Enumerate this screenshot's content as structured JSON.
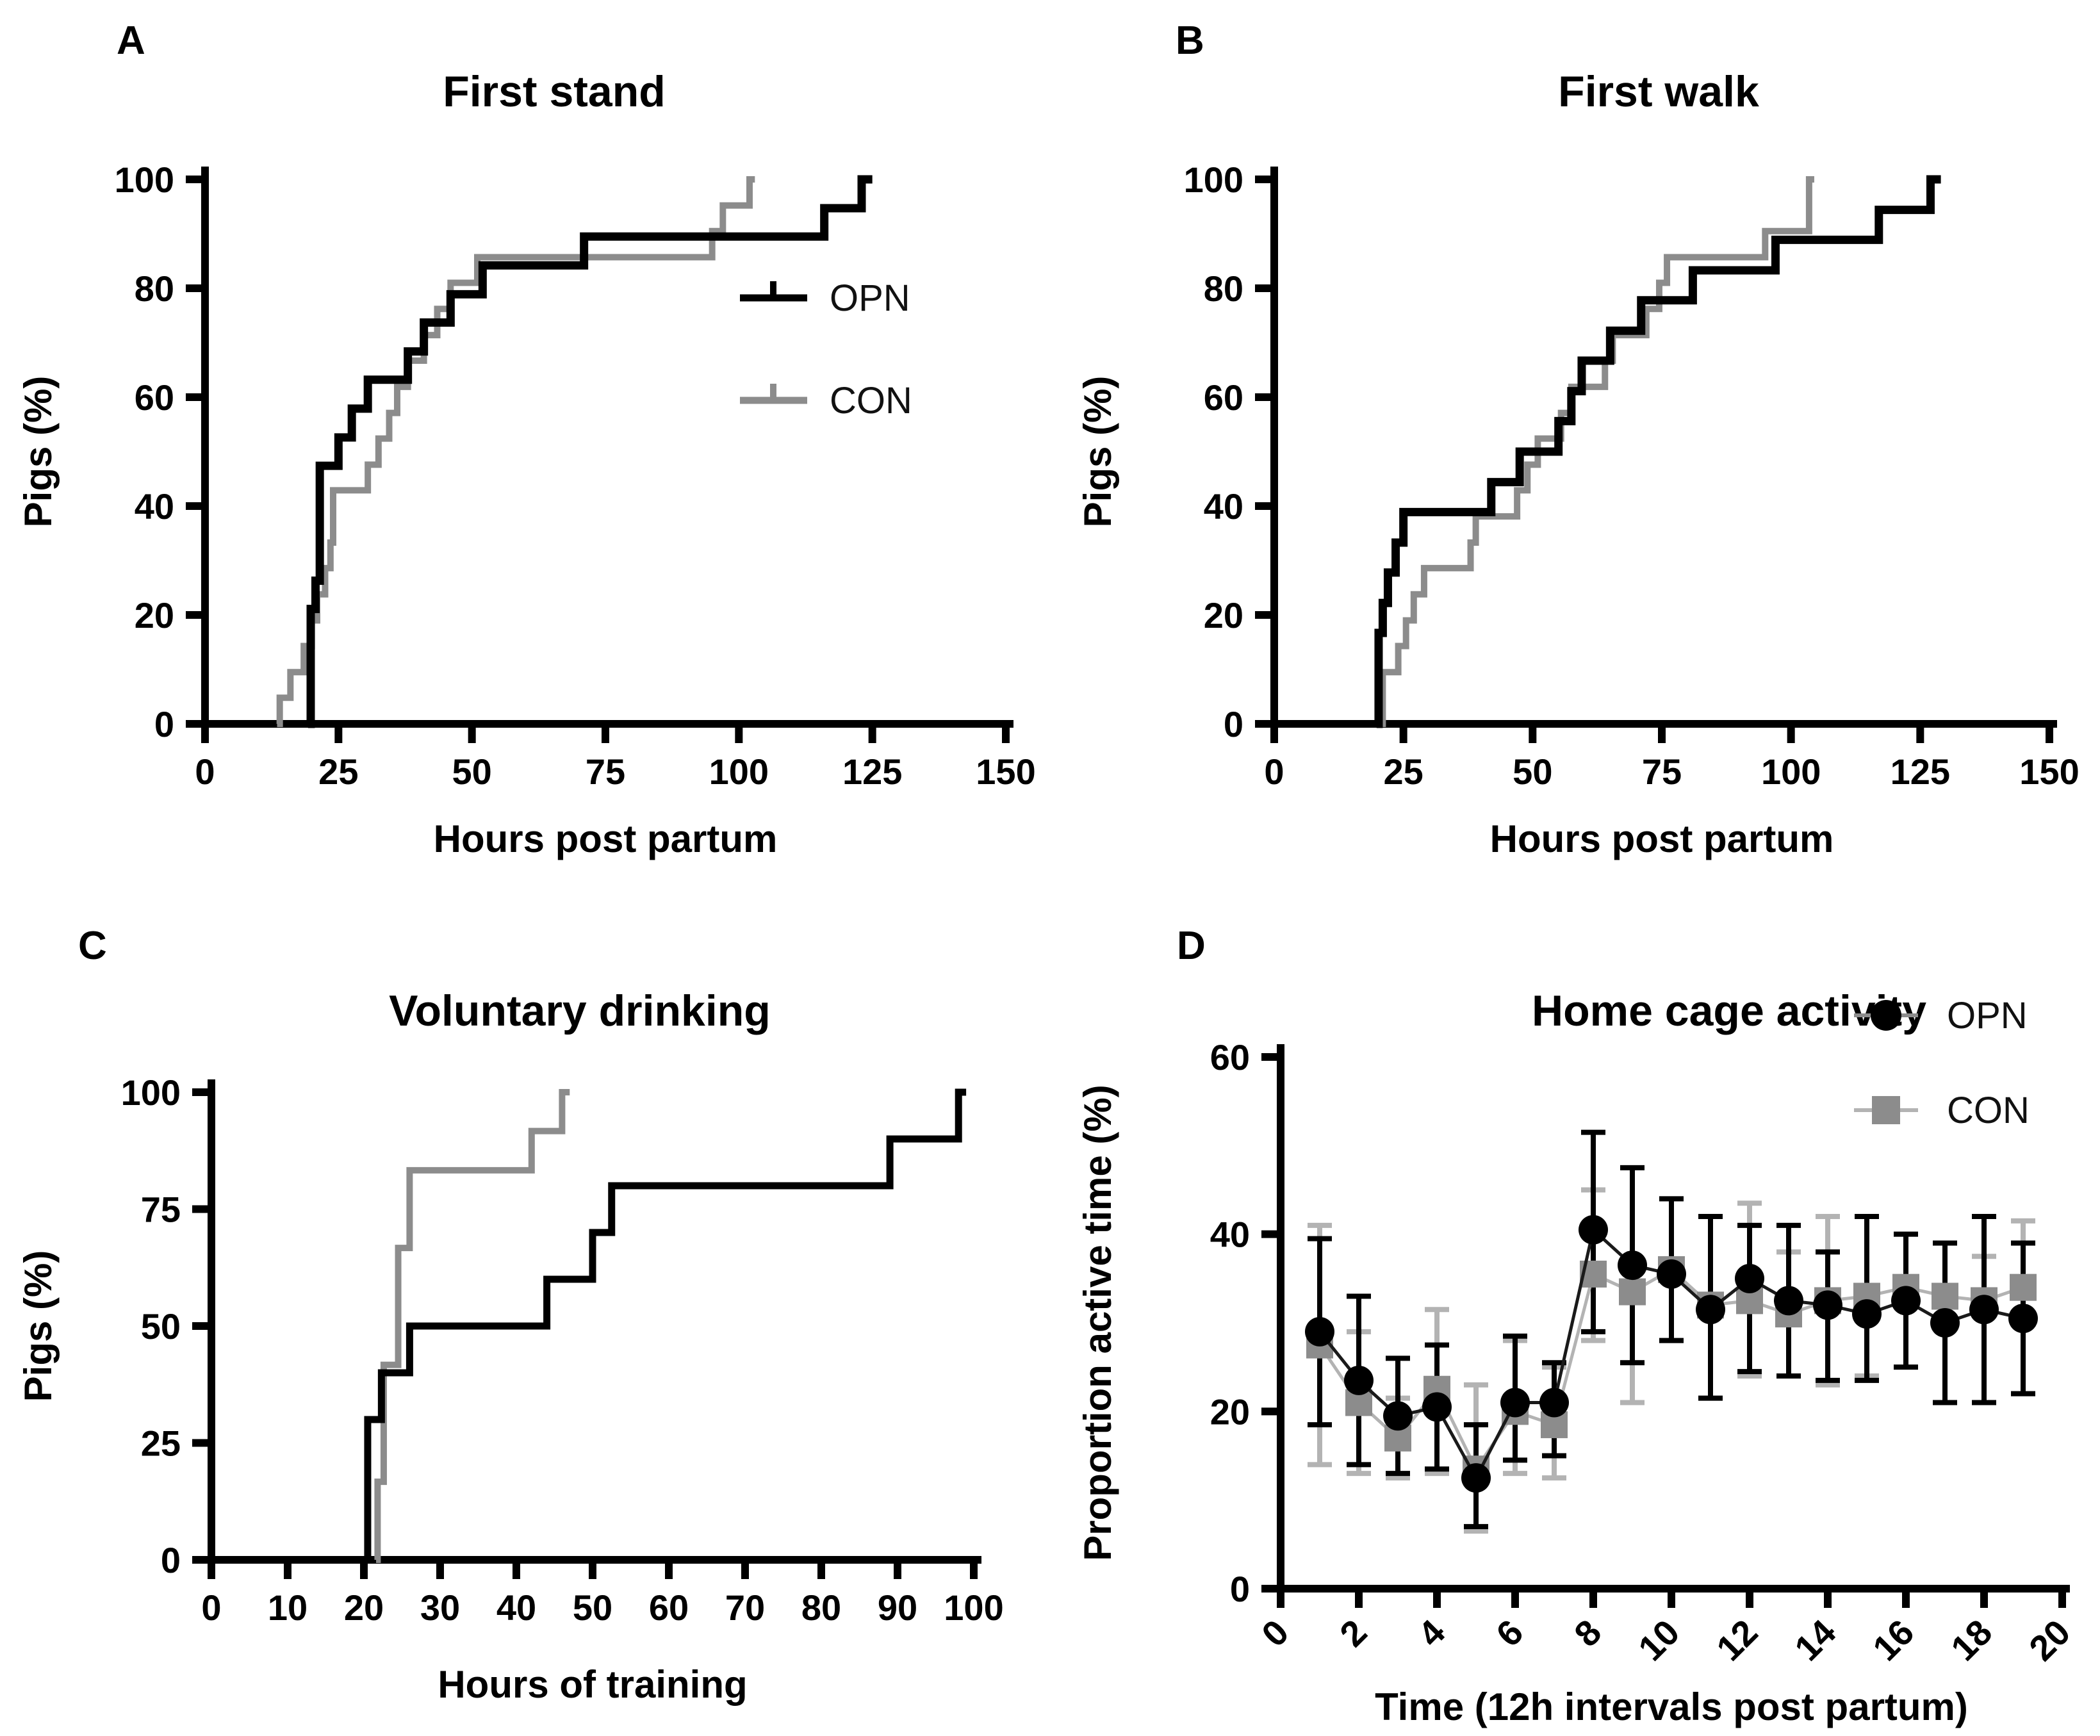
{
  "chart_data": [
    {
      "id": "A",
      "panel_label": "A",
      "type": "step",
      "title": "First stand",
      "xlabel": "Hours post partum",
      "ylabel": "Pigs (%)",
      "xlim": [
        0,
        150
      ],
      "xticks": [
        0,
        25,
        50,
        75,
        100,
        125,
        150
      ],
      "ylim": [
        0,
        100
      ],
      "yticks": [
        0,
        20,
        40,
        60,
        80,
        100
      ],
      "grid": false,
      "legend": {
        "show": true,
        "position": "inside-right",
        "items": [
          {
            "label": "OPN",
            "color": "#000000"
          },
          {
            "label": "CON",
            "color": "#8c8c8c"
          }
        ]
      },
      "series": [
        {
          "name": "CON",
          "color": "#8c8c8c",
          "line_width": 10,
          "end_x": 103,
          "points": [
            [
              13.5,
              0
            ],
            [
              14,
              4.8
            ],
            [
              16,
              9.5
            ],
            [
              18.5,
              14.3
            ],
            [
              20,
              19
            ],
            [
              21,
              23.8
            ],
            [
              22.5,
              28.6
            ],
            [
              23.5,
              33.3
            ],
            [
              24,
              42.9
            ],
            [
              30.5,
              47.6
            ],
            [
              32.5,
              52.4
            ],
            [
              34.5,
              57.1
            ],
            [
              36,
              61.9
            ],
            [
              38,
              66.7
            ],
            [
              41,
              71.4
            ],
            [
              43.5,
              76.2
            ],
            [
              46,
              81
            ],
            [
              51,
              85.7
            ],
            [
              95,
              90.5
            ],
            [
              97,
              95.2
            ],
            [
              102,
              100
            ]
          ]
        },
        {
          "name": "OPN",
          "color": "#000000",
          "line_width": 13,
          "end_x": 125,
          "points": [
            [
              19.3,
              0
            ],
            [
              19.8,
              21.1
            ],
            [
              20.7,
              26.3
            ],
            [
              21.5,
              47.4
            ],
            [
              25,
              52.6
            ],
            [
              27.5,
              57.9
            ],
            [
              30.5,
              63.2
            ],
            [
              38,
              68.4
            ],
            [
              41,
              73.7
            ],
            [
              46,
              78.9
            ],
            [
              52,
              84.2
            ],
            [
              71,
              89.5
            ],
            [
              116,
              94.7
            ],
            [
              123,
              100
            ]
          ]
        }
      ]
    },
    {
      "id": "B",
      "panel_label": "B",
      "type": "step",
      "title": "First walk",
      "xlabel": "Hours post partum",
      "ylabel": "Pigs (%)",
      "xlim": [
        0,
        150
      ],
      "xticks": [
        0,
        25,
        50,
        75,
        100,
        125,
        150
      ],
      "ylim": [
        0,
        100
      ],
      "yticks": [
        0,
        20,
        40,
        60,
        80,
        100
      ],
      "grid": false,
      "legend": {
        "show": false,
        "items": []
      },
      "series": [
        {
          "name": "CON",
          "color": "#8c8c8c",
          "line_width": 10,
          "end_x": 104.5,
          "points": [
            [
              20.8,
              0
            ],
            [
              21,
              9.5
            ],
            [
              24,
              14.3
            ],
            [
              25.5,
              19
            ],
            [
              27,
              23.8
            ],
            [
              29,
              28.6
            ],
            [
              38,
              33.3
            ],
            [
              39,
              38.1
            ],
            [
              47,
              42.9
            ],
            [
              49,
              47.6
            ],
            [
              51,
              52.4
            ],
            [
              55.5,
              57.1
            ],
            [
              57.5,
              61.9
            ],
            [
              64,
              66.7
            ],
            [
              65.5,
              71.4
            ],
            [
              72,
              76.2
            ],
            [
              74.5,
              81
            ],
            [
              76,
              85.7
            ],
            [
              95,
              90.5
            ],
            [
              103.5,
              100
            ]
          ]
        },
        {
          "name": "OPN",
          "color": "#000000",
          "line_width": 13,
          "end_x": 129,
          "points": [
            [
              19.8,
              0
            ],
            [
              20.2,
              16.7
            ],
            [
              21,
              22.2
            ],
            [
              22,
              27.8
            ],
            [
              23.5,
              33.3
            ],
            [
              25,
              38.9
            ],
            [
              42,
              44.4
            ],
            [
              47.5,
              50
            ],
            [
              55,
              55.6
            ],
            [
              57.5,
              61.1
            ],
            [
              59.5,
              66.7
            ],
            [
              65,
              72.2
            ],
            [
              71,
              77.8
            ],
            [
              81,
              83.3
            ],
            [
              97,
              88.9
            ],
            [
              117,
              94.4
            ],
            [
              127,
              100
            ]
          ]
        }
      ]
    },
    {
      "id": "C",
      "panel_label": "C",
      "type": "step",
      "title": "Voluntary drinking",
      "xlabel": "Hours of training",
      "ylabel": "Pigs (%)",
      "xlim": [
        0,
        100
      ],
      "xticks": [
        0,
        10,
        20,
        30,
        40,
        50,
        60,
        70,
        80,
        90,
        100
      ],
      "ylim": [
        0,
        100
      ],
      "yticks": [
        0,
        25,
        50,
        75,
        100
      ],
      "grid": false,
      "legend": {
        "show": false,
        "items": []
      },
      "series": [
        {
          "name": "CON",
          "color": "#8c8c8c",
          "line_width": 10,
          "end_x": 47,
          "points": [
            [
              21.6,
              0
            ],
            [
              21.8,
              16.7
            ],
            [
              22.6,
              41.7
            ],
            [
              24.5,
              66.7
            ],
            [
              26,
              83.3
            ],
            [
              42,
              91.7
            ],
            [
              46,
              100
            ]
          ]
        },
        {
          "name": "OPN",
          "color": "#000000",
          "line_width": 11,
          "end_x": 99,
          "points": [
            [
              20.2,
              0
            ],
            [
              20.5,
              30
            ],
            [
              22.3,
              40
            ],
            [
              26,
              50
            ],
            [
              44,
              60
            ],
            [
              50,
              70
            ],
            [
              52.5,
              80
            ],
            [
              89,
              90
            ],
            [
              98,
              100
            ]
          ]
        }
      ]
    },
    {
      "id": "D",
      "panel_label": "D",
      "type": "errorline",
      "title": "Home cage activity",
      "xlabel": "Time (12h intervals post partum)",
      "ylabel": "Proportion active time (%)",
      "xlim": [
        0,
        20
      ],
      "xticks": [
        0,
        2,
        4,
        6,
        8,
        10,
        12,
        14,
        16,
        18,
        20
      ],
      "ylim": [
        0,
        60
      ],
      "yticks": [
        0,
        20,
        40,
        60
      ],
      "grid": false,
      "x": [
        1,
        2,
        3,
        4,
        5,
        6,
        7,
        8,
        9,
        10,
        11,
        12,
        13,
        14,
        15,
        16,
        17,
        18,
        19
      ],
      "legend": {
        "show": true,
        "position": "top-right",
        "items": [
          {
            "label": "OPN",
            "color": "#000000",
            "marker": "circle"
          },
          {
            "label": "CON",
            "color": "#8c8c8c",
            "marker": "square"
          }
        ]
      },
      "series": [
        {
          "name": "CON",
          "marker": "square",
          "marker_color": "#8c8c8c",
          "line_color": "#b3b3b3",
          "bar_color": "#b3b3b3",
          "values": [
            27.5,
            21,
            17,
            22.5,
            13.5,
            20,
            18.5,
            35.5,
            33.5,
            36,
            32,
            32.5,
            31,
            32.5,
            33,
            34,
            33,
            32.5,
            34
          ],
          "err_lo": [
            14,
            13,
            12.5,
            13,
            6.5,
            13,
            12.5,
            28,
            21,
            28,
            21.5,
            24,
            24,
            23,
            24,
            25,
            21,
            21,
            22
          ],
          "err_hi": [
            41,
            29,
            21.5,
            31.5,
            23,
            28,
            25,
            45,
            47.5,
            44,
            42,
            43.5,
            38,
            42,
            42,
            40,
            39,
            37.5,
            41.5
          ]
        },
        {
          "name": "OPN",
          "marker": "circle",
          "marker_color": "#000000",
          "line_color": "#1a1a1a",
          "bar_color": "#000000",
          "values": [
            29,
            23.5,
            19.5,
            20.5,
            12.5,
            21,
            21,
            40.5,
            36.5,
            35.5,
            31.5,
            35,
            32.5,
            32,
            31,
            32.5,
            30,
            31.5,
            30.5
          ],
          "err_lo": [
            18.5,
            14,
            13,
            13.5,
            7,
            14.5,
            15,
            29,
            25.5,
            28,
            21.5,
            24.5,
            24,
            23.5,
            23.5,
            25,
            21,
            21,
            22
          ],
          "err_hi": [
            39.5,
            33,
            26,
            27.5,
            18.5,
            28.5,
            25.5,
            51.5,
            47.5,
            44,
            42,
            41,
            41,
            38,
            42,
            40,
            39,
            42,
            39
          ]
        }
      ]
    }
  ]
}
